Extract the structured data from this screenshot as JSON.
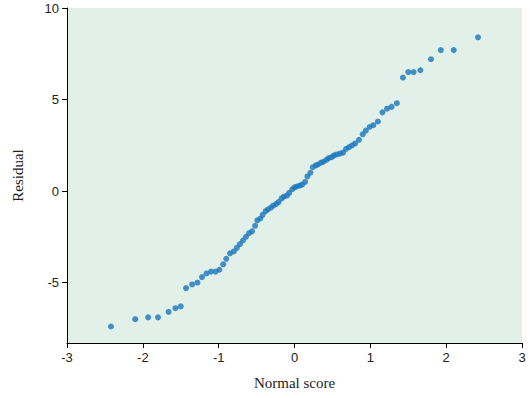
{
  "chart_data": {
    "type": "scatter",
    "x_label": "Normal score",
    "y_label": "Residual",
    "color": "#1a75bc",
    "marker": "circle",
    "grid": false,
    "xlim": [
      -3,
      3
    ],
    "xticks": [
      -3,
      -2,
      -1,
      0,
      1,
      2,
      3
    ],
    "ylim": [
      -8.3,
      10
    ],
    "yticks": [
      -5,
      0,
      5,
      10
    ],
    "x": [
      -2.42,
      -2.1,
      -1.93,
      -1.8,
      -1.66,
      -1.57,
      -1.5,
      -1.43,
      -1.35,
      -1.28,
      -1.22,
      -1.16,
      -1.1,
      -1.04,
      -0.99,
      -0.94,
      -0.9,
      -0.85,
      -0.8,
      -0.76,
      -0.72,
      -0.68,
      -0.64,
      -0.6,
      -0.56,
      -0.52,
      -0.49,
      -0.45,
      -0.42,
      -0.38,
      -0.35,
      -0.31,
      -0.28,
      -0.24,
      -0.21,
      -0.17,
      -0.14,
      -0.1,
      -0.07,
      -0.03,
      0,
      0.03,
      0.07,
      0.1,
      0.14,
      0.17,
      0.21,
      0.24,
      0.28,
      0.31,
      0.35,
      0.38,
      0.42,
      0.45,
      0.49,
      0.52,
      0.56,
      0.6,
      0.64,
      0.68,
      0.72,
      0.76,
      0.8,
      0.85,
      0.9,
      0.94,
      0.99,
      1.04,
      1.1,
      1.16,
      1.22,
      1.28,
      1.35,
      1.43,
      1.5,
      1.57,
      1.66,
      1.8,
      1.93,
      2.1,
      2.42
    ],
    "values": [
      -7.4,
      -7.0,
      -6.9,
      -6.9,
      -6.6,
      -6.4,
      -6.3,
      -5.3,
      -5.1,
      -5.0,
      -4.7,
      -4.5,
      -4.4,
      -4.4,
      -4.3,
      -4.0,
      -3.7,
      -3.4,
      -3.3,
      -3.1,
      -2.9,
      -2.7,
      -2.5,
      -2.3,
      -2.2,
      -1.9,
      -1.6,
      -1.5,
      -1.3,
      -1.1,
      -1.0,
      -0.9,
      -0.8,
      -0.7,
      -0.6,
      -0.4,
      -0.3,
      -0.25,
      -0.1,
      0.1,
      0.2,
      0.25,
      0.3,
      0.35,
      0.5,
      0.8,
      1.0,
      1.3,
      1.4,
      1.45,
      1.55,
      1.6,
      1.7,
      1.8,
      1.85,
      1.95,
      2.0,
      2.05,
      2.1,
      2.3,
      2.4,
      2.5,
      2.6,
      2.8,
      3.1,
      3.3,
      3.5,
      3.6,
      3.8,
      4.3,
      4.5,
      4.6,
      4.8,
      6.2,
      6.5,
      6.5,
      6.6,
      7.2,
      7.7,
      7.7,
      8.4
    ]
  }
}
